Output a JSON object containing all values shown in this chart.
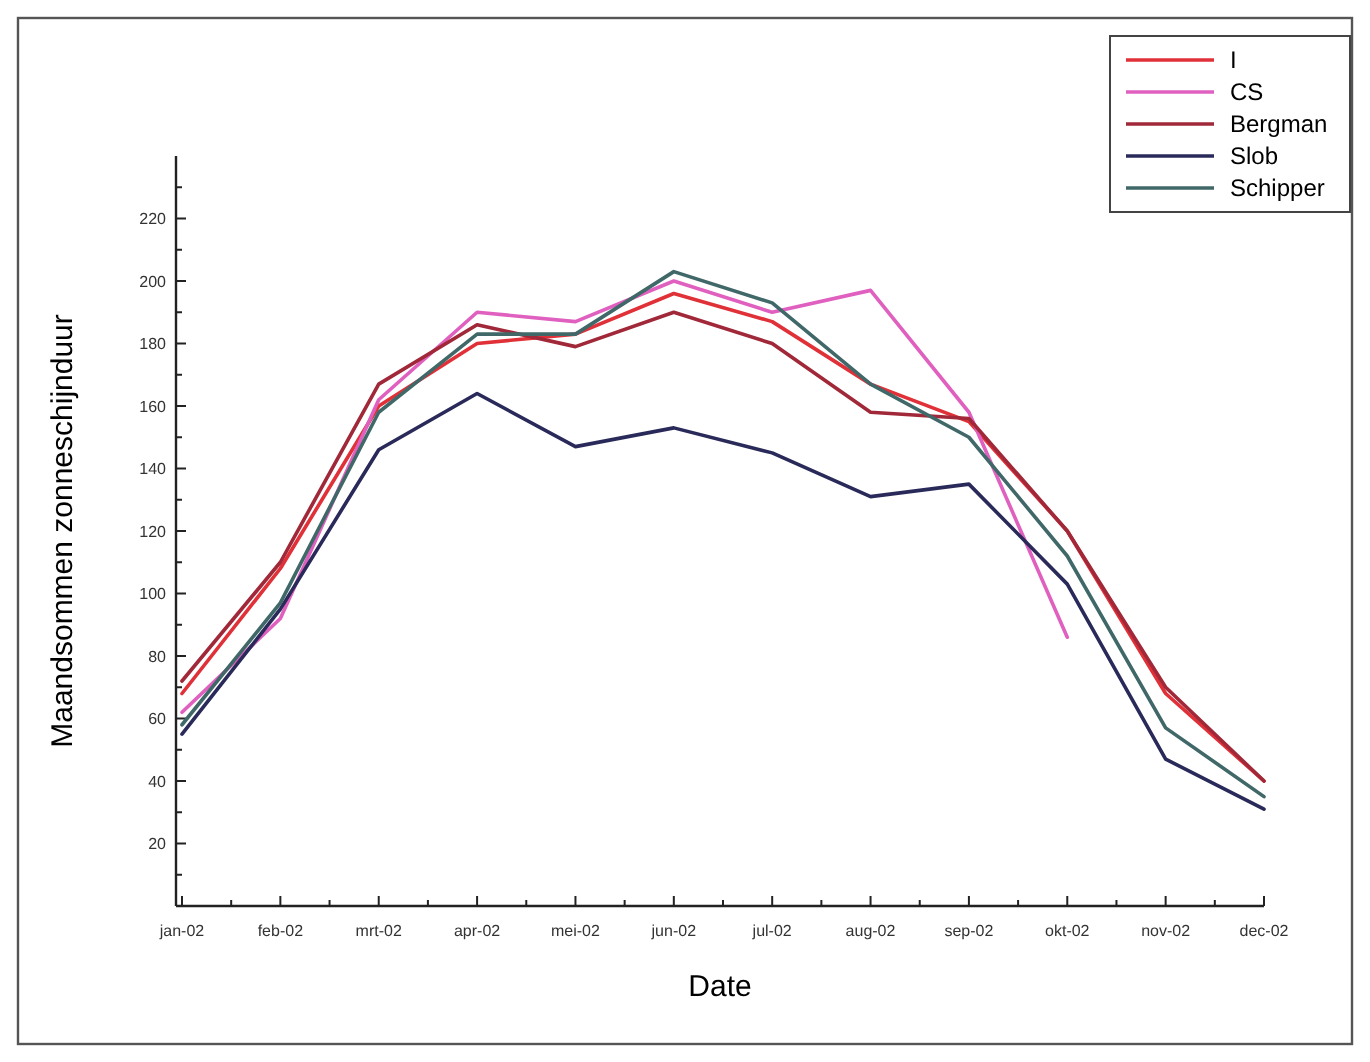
{
  "chart_data": {
    "type": "line",
    "xlabel": "Date",
    "ylabel": "Maandsommen zonneschijnduur",
    "categories": [
      "jan-02",
      "feb-02",
      "mrt-02",
      "apr-02",
      "mei-02",
      "jun-02",
      "jul-02",
      "aug-02",
      "sep-02",
      "okt-02",
      "nov-02",
      "dec-02"
    ],
    "series": [
      {
        "name": "I",
        "color": "#e03038",
        "values": [
          68,
          108,
          160,
          180,
          183,
          196,
          187,
          167,
          155,
          120,
          68,
          40
        ]
      },
      {
        "name": "CS",
        "color": "#e060c0",
        "values": [
          62,
          92,
          162,
          190,
          187,
          200,
          190,
          197,
          158,
          86,
          null,
          null
        ]
      },
      {
        "name": "Bergman",
        "color": "#a02838",
        "values": [
          72,
          110,
          167,
          186,
          179,
          190,
          180,
          158,
          156,
          120,
          70,
          40
        ]
      },
      {
        "name": "Slob",
        "color": "#2a2a5a",
        "values": [
          55,
          95,
          146,
          164,
          147,
          153,
          145,
          131,
          135,
          103,
          47,
          31
        ]
      },
      {
        "name": "Schipper",
        "color": "#406868",
        "values": [
          58,
          97,
          158,
          183,
          183,
          203,
          193,
          167,
          150,
          112,
          57,
          35
        ]
      }
    ],
    "ylim": [
      0,
      240
    ],
    "yticks": [
      {
        "value": 10,
        "label": null
      },
      20,
      {
        "value": 30,
        "label": null
      },
      40,
      {
        "value": 50,
        "label": null
      },
      60,
      {
        "value": 70,
        "label": null
      },
      80,
      {
        "value": 90,
        "label": null
      },
      100,
      {
        "value": 110,
        "label": null
      },
      120,
      {
        "value": 130,
        "label": null
      },
      140,
      {
        "value": 150,
        "label": null
      },
      160,
      {
        "value": 170,
        "label": null
      },
      180,
      {
        "value": 190,
        "label": null
      },
      200,
      {
        "value": 210,
        "label": null
      },
      220,
      {
        "value": 230,
        "label": null
      }
    ],
    "grid": false,
    "legend": "top right",
    "marker": "none",
    "line_style": "solid"
  }
}
